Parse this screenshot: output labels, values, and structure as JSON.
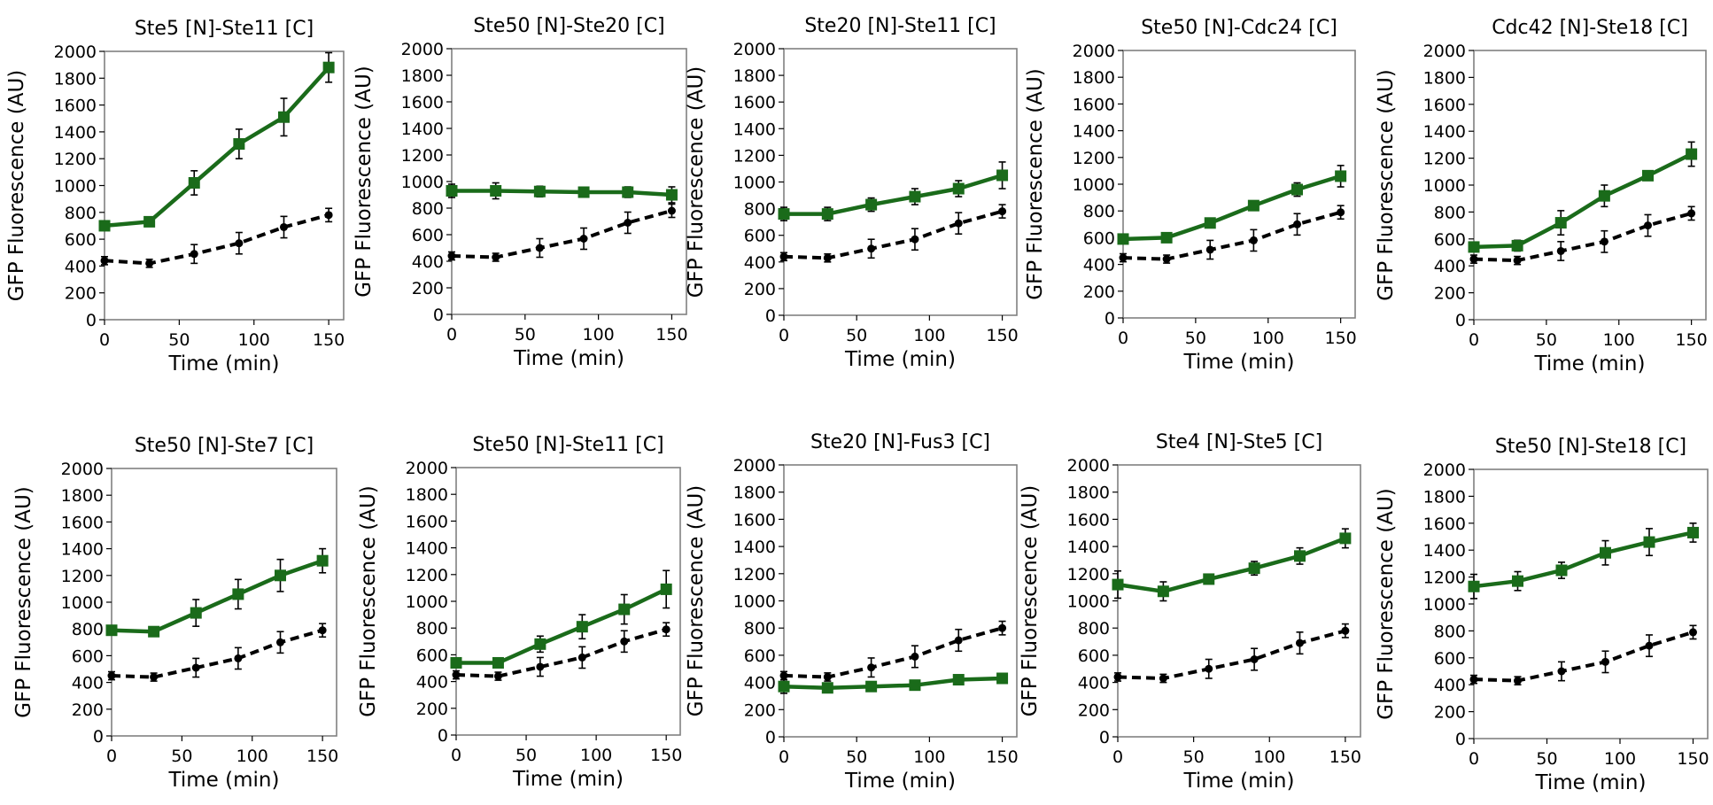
{
  "chart_data": [
    {
      "type": "line",
      "title": "Ste5 [N]-Ste11 [C]",
      "xlabel": "Time (min)",
      "ylabel": "GFP Fluorescence (AU)",
      "xlim": [
        0,
        160
      ],
      "ylim": [
        0,
        2000
      ],
      "xticks": [
        0,
        50,
        100,
        150
      ],
      "yticks": [
        0,
        200,
        400,
        600,
        800,
        1000,
        1200,
        1400,
        1600,
        1800,
        2000
      ],
      "x": [
        0,
        30,
        60,
        90,
        120,
        150
      ],
      "series": [
        {
          "color": "#1a6b1a",
          "style": "solid",
          "marker": "square",
          "values": [
            700,
            730,
            1020,
            1310,
            1510,
            1880
          ],
          "errors": [
            0,
            20,
            90,
            110,
            140,
            110
          ]
        },
        {
          "color": "#000000",
          "style": "dashed",
          "marker": "circle",
          "values": [
            440,
            420,
            490,
            570,
            690,
            780
          ],
          "errors": [
            30,
            30,
            70,
            80,
            80,
            50
          ]
        }
      ]
    },
    {
      "type": "line",
      "title": "Ste50 [N]-Ste20 [C]",
      "xlabel": "Time (min)",
      "ylabel": "GFP Fluorescence (AU)",
      "xlim": [
        0,
        160
      ],
      "ylim": [
        0,
        2000
      ],
      "xticks": [
        0,
        50,
        100,
        150
      ],
      "yticks": [
        0,
        200,
        400,
        600,
        800,
        1000,
        1200,
        1400,
        1600,
        1800,
        2000
      ],
      "x": [
        0,
        30,
        60,
        90,
        120,
        150
      ],
      "series": [
        {
          "color": "#1a6b1a",
          "style": "solid",
          "marker": "square",
          "values": [
            930,
            930,
            925,
            920,
            920,
            900
          ],
          "errors": [
            50,
            60,
            40,
            30,
            40,
            60
          ]
        },
        {
          "color": "#000000",
          "style": "dashed",
          "marker": "circle",
          "values": [
            440,
            430,
            500,
            570,
            690,
            780
          ],
          "errors": [
            30,
            30,
            70,
            80,
            80,
            50
          ]
        }
      ]
    },
    {
      "type": "line",
      "title": "Ste20 [N]-Ste11 [C]",
      "xlabel": "Time (min)",
      "ylabel": "GFP Fluorescence (AU)",
      "xlim": [
        0,
        160
      ],
      "ylim": [
        0,
        2000
      ],
      "xticks": [
        0,
        50,
        100,
        150
      ],
      "yticks": [
        0,
        200,
        400,
        600,
        800,
        1000,
        1200,
        1400,
        1600,
        1800,
        2000
      ],
      "x": [
        0,
        30,
        60,
        90,
        120,
        150
      ],
      "series": [
        {
          "color": "#1a6b1a",
          "style": "solid",
          "marker": "square",
          "values": [
            760,
            760,
            830,
            890,
            950,
            1050
          ],
          "errors": [
            50,
            50,
            50,
            60,
            60,
            100
          ]
        },
        {
          "color": "#000000",
          "style": "dashed",
          "marker": "circle",
          "values": [
            440,
            430,
            500,
            570,
            690,
            780
          ],
          "errors": [
            30,
            30,
            70,
            80,
            80,
            50
          ]
        }
      ]
    },
    {
      "type": "line",
      "title": "Ste50 [N]-Cdc24 [C]",
      "xlabel": "Time (min)",
      "ylabel": "GFP Fluorescence (AU)",
      "xlim": [
        0,
        160
      ],
      "ylim": [
        0,
        2000
      ],
      "xticks": [
        0,
        50,
        100,
        150
      ],
      "yticks": [
        0,
        200,
        400,
        600,
        800,
        1000,
        1200,
        1400,
        1600,
        1800,
        2000
      ],
      "x": [
        0,
        30,
        60,
        90,
        120,
        150
      ],
      "series": [
        {
          "color": "#1a6b1a",
          "style": "solid",
          "marker": "square",
          "values": [
            590,
            600,
            710,
            840,
            960,
            1060
          ],
          "errors": [
            30,
            20,
            20,
            20,
            50,
            80
          ]
        },
        {
          "color": "#000000",
          "style": "dashed",
          "marker": "circle",
          "values": [
            450,
            440,
            510,
            580,
            700,
            790
          ],
          "errors": [
            30,
            30,
            70,
            80,
            80,
            50
          ]
        }
      ]
    },
    {
      "type": "line",
      "title": "Cdc42 [N]-Ste18 [C]",
      "xlabel": "Time (min)",
      "ylabel": "GFP Fluorescence (AU)",
      "xlim": [
        0,
        160
      ],
      "ylim": [
        0,
        2000
      ],
      "xticks": [
        0,
        50,
        100,
        150
      ],
      "yticks": [
        0,
        200,
        400,
        600,
        800,
        1000,
        1200,
        1400,
        1600,
        1800,
        2000
      ],
      "x": [
        0,
        30,
        60,
        90,
        120,
        150
      ],
      "series": [
        {
          "color": "#1a6b1a",
          "style": "solid",
          "marker": "square",
          "values": [
            540,
            550,
            720,
            920,
            1070,
            1230
          ],
          "errors": [
            30,
            40,
            90,
            80,
            30,
            90
          ]
        },
        {
          "color": "#000000",
          "style": "dashed",
          "marker": "circle",
          "values": [
            450,
            440,
            510,
            580,
            700,
            790
          ],
          "errors": [
            30,
            30,
            70,
            80,
            80,
            50
          ]
        }
      ]
    },
    {
      "type": "line",
      "title": "Ste50 [N]-Ste7 [C]",
      "xlabel": "Time (min)",
      "ylabel": "GFP Fluorescence (AU)",
      "xlim": [
        0,
        160
      ],
      "ylim": [
        0,
        2000
      ],
      "xticks": [
        0,
        50,
        100,
        150
      ],
      "yticks": [
        0,
        200,
        400,
        600,
        800,
        1000,
        1200,
        1400,
        1600,
        1800,
        2000
      ],
      "x": [
        0,
        30,
        60,
        90,
        120,
        150
      ],
      "series": [
        {
          "color": "#1a6b1a",
          "style": "solid",
          "marker": "square",
          "values": [
            790,
            780,
            920,
            1060,
            1200,
            1310
          ],
          "errors": [
            20,
            20,
            100,
            110,
            120,
            90
          ]
        },
        {
          "color": "#000000",
          "style": "dashed",
          "marker": "circle",
          "values": [
            450,
            440,
            510,
            580,
            700,
            790
          ],
          "errors": [
            30,
            30,
            70,
            80,
            80,
            50
          ]
        }
      ]
    },
    {
      "type": "line",
      "title": "Ste50 [N]-Ste11 [C]",
      "xlabel": "Time (min)",
      "ylabel": "GFP Fluorescence (AU)",
      "xlim": [
        0,
        160
      ],
      "ylim": [
        0,
        2000
      ],
      "xticks": [
        0,
        50,
        100,
        150
      ],
      "yticks": [
        0,
        200,
        400,
        600,
        800,
        1000,
        1200,
        1400,
        1600,
        1800,
        2000
      ],
      "x": [
        0,
        30,
        60,
        90,
        120,
        150
      ],
      "series": [
        {
          "color": "#1a6b1a",
          "style": "solid",
          "marker": "square",
          "values": [
            540,
            540,
            680,
            810,
            940,
            1090
          ],
          "errors": [
            30,
            20,
            60,
            90,
            110,
            140
          ]
        },
        {
          "color": "#000000",
          "style": "dashed",
          "marker": "circle",
          "values": [
            450,
            440,
            510,
            580,
            700,
            790
          ],
          "errors": [
            30,
            30,
            70,
            80,
            80,
            50
          ]
        }
      ]
    },
    {
      "type": "line",
      "title": "Ste20 [N]-Fus3 [C]",
      "xlabel": "Time (min)",
      "ylabel": "GFP Fluorescence (AU)",
      "xlim": [
        0,
        160
      ],
      "ylim": [
        0,
        2000
      ],
      "xticks": [
        0,
        50,
        100,
        150
      ],
      "yticks": [
        0,
        200,
        400,
        600,
        800,
        1000,
        1200,
        1400,
        1600,
        1800,
        2000
      ],
      "x": [
        0,
        30,
        60,
        90,
        120,
        150
      ],
      "series": [
        {
          "color": "#1a6b1a",
          "style": "solid",
          "marker": "square",
          "values": [
            370,
            360,
            370,
            380,
            420,
            430
          ],
          "errors": [
            50,
            30,
            20,
            20,
            30,
            30
          ]
        },
        {
          "color": "#000000",
          "style": "dashed",
          "marker": "circle",
          "values": [
            450,
            440,
            510,
            590,
            710,
            800
          ],
          "errors": [
            30,
            30,
            70,
            80,
            80,
            50
          ]
        }
      ]
    },
    {
      "type": "line",
      "title": "Ste4 [N]-Ste5 [C]",
      "xlabel": "Time (min)",
      "ylabel": "GFP Fluorescence (AU)",
      "xlim": [
        0,
        160
      ],
      "ylim": [
        0,
        2000
      ],
      "xticks": [
        0,
        50,
        100,
        150
      ],
      "yticks": [
        0,
        200,
        400,
        600,
        800,
        1000,
        1200,
        1400,
        1600,
        1800,
        2000
      ],
      "x": [
        0,
        30,
        60,
        90,
        120,
        150
      ],
      "series": [
        {
          "color": "#1a6b1a",
          "style": "solid",
          "marker": "square",
          "values": [
            1120,
            1070,
            1160,
            1240,
            1330,
            1460
          ],
          "errors": [
            100,
            70,
            20,
            50,
            60,
            70
          ]
        },
        {
          "color": "#000000",
          "style": "dashed",
          "marker": "circle",
          "values": [
            440,
            430,
            500,
            570,
            690,
            780
          ],
          "errors": [
            30,
            30,
            70,
            80,
            80,
            50
          ]
        }
      ]
    },
    {
      "type": "line",
      "title": "Ste50 [N]-Ste18 [C]",
      "xlabel": "Time (min)",
      "ylabel": "GFP Fluorescence (AU)",
      "xlim": [
        0,
        160
      ],
      "ylim": [
        0,
        2000
      ],
      "xticks": [
        0,
        50,
        100,
        150
      ],
      "yticks": [
        0,
        200,
        400,
        600,
        800,
        1000,
        1200,
        1400,
        1600,
        1800,
        2000
      ],
      "x": [
        0,
        30,
        60,
        90,
        120,
        150
      ],
      "series": [
        {
          "color": "#1a6b1a",
          "style": "solid",
          "marker": "square",
          "values": [
            1130,
            1170,
            1250,
            1380,
            1460,
            1530
          ],
          "errors": [
            90,
            70,
            60,
            90,
            100,
            70
          ]
        },
        {
          "color": "#000000",
          "style": "dashed",
          "marker": "circle",
          "values": [
            440,
            430,
            500,
            570,
            690,
            790
          ],
          "errors": [
            30,
            30,
            70,
            80,
            80,
            50
          ]
        }
      ]
    }
  ]
}
